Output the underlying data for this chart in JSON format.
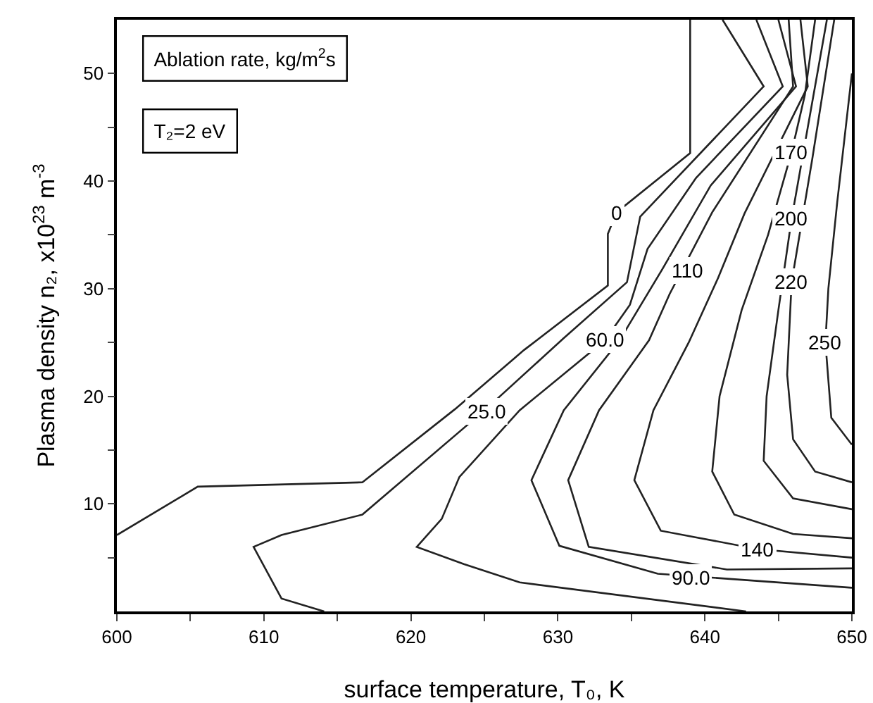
{
  "chart_data": {
    "type": "line",
    "xlabel": "surface temperature, T₀, K",
    "ylabel": "Plasma density n₂, x10$^{23}$ m$^{-3}$",
    "xlim": [
      600,
      650
    ],
    "ylim": [
      0,
      55
    ],
    "xticks": [
      600,
      {
        "value": 605,
        "label": null
      },
      610,
      {
        "value": 615,
        "label": null
      },
      620,
      {
        "value": 625,
        "label": null
      },
      630,
      {
        "value": 635,
        "label": null
      },
      640,
      {
        "value": 645,
        "label": null
      },
      650
    ],
    "yticks": [
      {
        "value": 5,
        "label": null
      },
      10,
      {
        "value": 15,
        "label": null
      },
      20,
      {
        "value": 25,
        "label": null
      },
      30,
      {
        "value": 35,
        "label": null
      },
      40,
      {
        "value": 45,
        "label": null
      },
      50
    ],
    "marker": "none",
    "line_style": "solid",
    "series": [
      {
        "color": "#222222",
        "x": [
          639.0,
          639.0,
          634.0,
          633.4,
          633.4,
          627.7,
          623.0,
          616.7,
          605.5,
          600
        ],
        "values": [
          55,
          42.6,
          37.1,
          35.1,
          30.3,
          24.3,
          18.8,
          12.0,
          11.6,
          7.1
        ]
      },
      {
        "color": "#222222",
        "x": [
          641.2,
          644.0,
          635.6,
          634.7,
          630.4,
          625.1,
          616.7,
          611.2,
          609.3,
          611.2,
          614.1
        ],
        "values": [
          55,
          48.8,
          36.7,
          30.6,
          25.4,
          18.8,
          9.0,
          7.1,
          6.0,
          1.2,
          0
        ]
      },
      {
        "color": "#222222",
        "x": [
          643.5,
          645.3,
          639.4,
          636.1,
          634.9,
          633.2,
          627.4,
          623.3,
          622.1,
          620.4,
          623.6,
          627.4,
          642.8
        ],
        "values": [
          55,
          48.8,
          40.3,
          33.7,
          28.5,
          25.2,
          18.7,
          12.5,
          8.6,
          6.0,
          4.4,
          2.7,
          0
        ]
      },
      {
        "color": "#222222",
        "x": [
          645.0,
          646.2,
          640.4,
          637.1,
          634.2,
          630.4,
          628.2,
          630.1,
          636.8,
          650
        ],
        "values": [
          55,
          48.8,
          39.6,
          31.8,
          25.2,
          18.7,
          12.2,
          6.1,
          3.5,
          2.2
        ]
      },
      {
        "color": "#222222",
        "x": [
          645.7,
          646.0,
          640.5,
          637.6,
          636.2,
          632.8,
          630.7,
          632.1,
          641.5,
          650
        ],
        "values": [
          55,
          48.8,
          37.1,
          29.5,
          25.2,
          18.7,
          12.2,
          6.0,
          3.9,
          4.0
        ]
      },
      {
        "color": "#222222",
        "x": [
          646.5,
          647,
          642.7,
          640.9,
          638.9,
          636.5,
          635.2,
          637,
          643.6,
          650
        ],
        "values": [
          55,
          48.8,
          37,
          31,
          25,
          18.7,
          12.2,
          7.5,
          5.8,
          5.0
        ]
      },
      {
        "color": "#222222",
        "x": [
          647.5,
          646.8,
          645.9,
          644.3,
          642.5,
          641,
          640.5,
          642,
          646,
          650
        ],
        "values": [
          55,
          48,
          42.7,
          35,
          28,
          20,
          13,
          9,
          7.2,
          6.8
        ]
      },
      {
        "color": "#222222",
        "x": [
          648.3,
          647,
          645.9,
          645,
          644.2,
          644,
          646,
          650
        ],
        "values": [
          55,
          45,
          36.5,
          28,
          20,
          14,
          10.5,
          9.5
        ]
      },
      {
        "color": "#222222",
        "x": [
          648.8,
          647.3,
          645.9,
          645.6,
          646,
          647.5,
          650
        ],
        "values": [
          55,
          42,
          30.6,
          22,
          16,
          13,
          12
        ]
      },
      {
        "color": "#222222",
        "x": [
          650,
          649,
          648.4,
          648.2,
          648.6,
          650
        ],
        "values": [
          50,
          38,
          30,
          25,
          18,
          15.5
        ]
      }
    ],
    "annotations": [
      "Ablation rate, kg/m$^{2}$s",
      "T₂=2 eV",
      {
        "text": "0",
        "x": 634.0,
        "y": 37.1
      },
      {
        "text": "25.0",
        "x": 625.1,
        "y": 18.6
      },
      {
        "text": "60.0",
        "x": 633.2,
        "y": 25.3
      },
      {
        "text": "90.0",
        "x": 639.0,
        "y": 3.2
      },
      {
        "text": "110",
        "x": 638.8,
        "y": 31.7
      },
      {
        "text": "140",
        "x": 643.6,
        "y": 5.8
      },
      {
        "text": "170",
        "x": 645.9,
        "y": 42.7
      },
      {
        "text": "200",
        "x": 645.9,
        "y": 36.5
      },
      {
        "text": "220",
        "x": 645.9,
        "y": 30.6
      },
      {
        "text": "250",
        "x": 648.2,
        "y": 25.0
      }
    ]
  }
}
